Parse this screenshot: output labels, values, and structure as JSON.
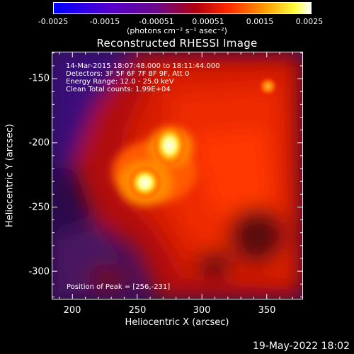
{
  "colorbar": {
    "tick_labels": [
      "-0.0025",
      "-0.0015",
      "-0.00051",
      "0.00051",
      "0.0015",
      "0.0025"
    ],
    "units_text": "(photons cm⁻² s⁻¹ asec⁻²)",
    "min": -0.0025,
    "max": 0.0025
  },
  "chart_data": {
    "type": "heatmap",
    "title": "Reconstructed RHESSI Image",
    "xlabel": "Heliocentric X (arcsec)",
    "ylabel": "Heliocentric Y (arcsec)",
    "xlim": [
      184,
      378
    ],
    "ylim": [
      -322,
      -129
    ],
    "x_ticks": [
      "200",
      "250",
      "300",
      "350"
    ],
    "y_ticks": [
      "-150",
      "-200",
      "-250",
      "-300"
    ],
    "sources": [
      {
        "x": 256,
        "y": -231,
        "peak": 0.0025
      },
      {
        "x": 275,
        "y": -202,
        "peak": 0.0024
      },
      {
        "x": 351,
        "y": -156,
        "peak": 0.0016
      }
    ],
    "annotations": [
      "14-Mar-2015 18:07:48.000 to 18:11:44.000",
      "Detectors: 3F 5F 6F 7F 8F 9F, Att 0",
      "Energy Range: 12.0 - 25.0 keV",
      "Clean     Total counts: 1.99E+04"
    ],
    "peak_label": "Position of Peak = [256,-231]"
  },
  "datestamp": "19-May-2022 18:02"
}
